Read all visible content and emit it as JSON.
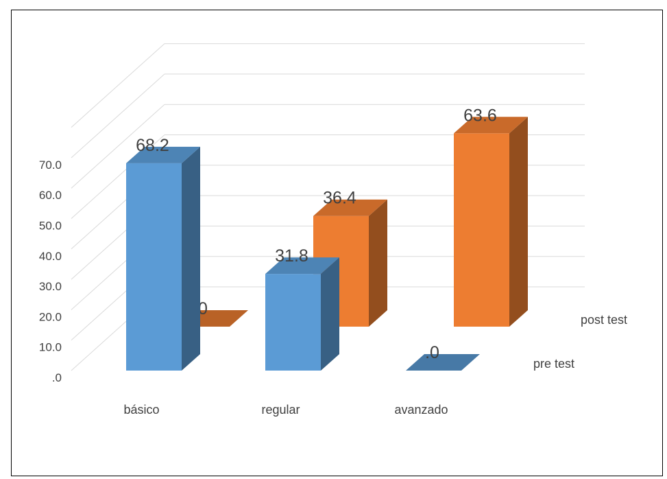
{
  "chart_data": {
    "type": "bar",
    "three_d": true,
    "categories": [
      "básico",
      "regular",
      "avanzado"
    ],
    "series": [
      {
        "name": "pre test",
        "values": [
          68.2,
          31.8,
          0.0
        ],
        "value_labels": [
          "68.2",
          "31.8",
          ".0"
        ],
        "color": "#5B9BD5"
      },
      {
        "name": "post test",
        "values": [
          0.0,
          36.4,
          63.6
        ],
        "value_labels": [
          ".0",
          "36.4",
          "63.6"
        ],
        "color": "#ED7D31"
      }
    ],
    "y_ticks": [
      ".0",
      "10.0",
      "20.0",
      "30.0",
      "40.0",
      "50.0",
      "60.0",
      "70.0"
    ],
    "ylim": [
      0,
      70
    ],
    "grid": true,
    "legend": "depth-axis-right"
  }
}
